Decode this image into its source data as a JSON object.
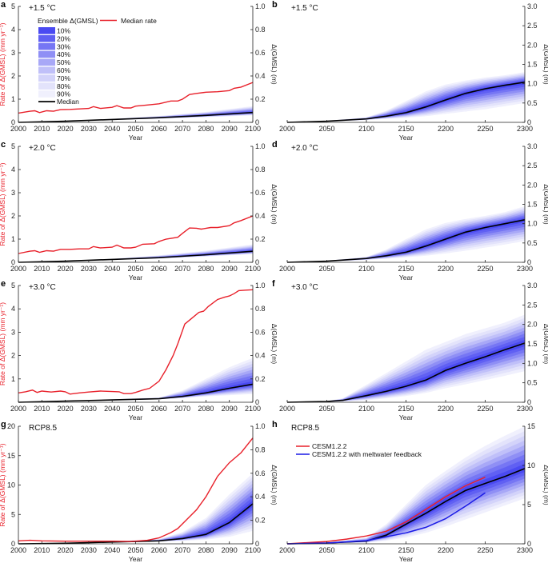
{
  "figure": {
    "ensemble_colors": [
      "#4a4af2",
      "#6060f3",
      "#7676f4",
      "#8f8ff5",
      "#a8a8f7",
      "#c0c0f9",
      "#d3d3fa",
      "#e3e3fb",
      "#f0f0fd"
    ],
    "median_color": "#000000",
    "rate_color": "#e8202a",
    "meltwater_color": "#1a1ae6",
    "legend": {
      "title": "Ensemble Δ(GMSL)",
      "percentiles": [
        "10%",
        "20%",
        "30%",
        "40%",
        "50%",
        "60%",
        "70%",
        "80%",
        "90%"
      ],
      "median_label": "Median",
      "rate_label": "Median rate"
    }
  },
  "chart_data": [
    {
      "id": "a",
      "letter": "a",
      "type": "line",
      "scenario": "+1.5 °C",
      "xlabel": "Year",
      "ylabel_left": "Rate of Δ(GMSL) (mm yr⁻¹)",
      "ylabel_right": "Δ(GMSL) (m)",
      "xlim": [
        2000,
        2100
      ],
      "xticks": [
        2000,
        2010,
        2020,
        2030,
        2040,
        2050,
        2060,
        2070,
        2080,
        2090,
        2100
      ],
      "ylim_left": [
        0,
        5
      ],
      "yticks_left": [
        0,
        1,
        2,
        3,
        4,
        5
      ],
      "ytick_labels_left": [
        "0",
        "1",
        "2",
        "3",
        "4",
        "5"
      ],
      "ylim_right": [
        0,
        1.0
      ],
      "yticks_right": [
        0,
        0.2,
        0.4,
        0.6,
        0.8,
        1.0
      ],
      "ytick_labels_right": [
        "0",
        "0.2",
        "0.4",
        "0.6",
        "0.8",
        "1.0"
      ],
      "has_legend": true,
      "x": [
        2000,
        2005,
        2007,
        2009,
        2012,
        2015,
        2018,
        2022,
        2026,
        2030,
        2032,
        2035,
        2040,
        2042,
        2045,
        2048,
        2050,
        2055,
        2060,
        2065,
        2068,
        2070,
        2073,
        2076,
        2080,
        2085,
        2090,
        2092,
        2095,
        2100
      ],
      "rate_median": [
        0.4,
        0.48,
        0.5,
        0.42,
        0.5,
        0.48,
        0.55,
        0.56,
        0.58,
        0.6,
        0.68,
        0.6,
        0.65,
        0.72,
        0.62,
        0.62,
        0.7,
        0.75,
        0.8,
        0.92,
        0.92,
        1.0,
        1.2,
        1.25,
        1.3,
        1.32,
        1.37,
        1.47,
        1.52,
        1.72
      ],
      "gmsl_x": [
        2000,
        2020,
        2040,
        2060,
        2080,
        2100
      ],
      "gmsl_median": [
        0.0,
        0.01,
        0.025,
        0.04,
        0.06,
        0.085
      ],
      "gmsl_upper_90": [
        0.0,
        0.012,
        0.03,
        0.055,
        0.09,
        0.14
      ],
      "gmsl_lower_90": [
        0.0,
        0.008,
        0.02,
        0.032,
        0.045,
        0.06
      ]
    },
    {
      "id": "b",
      "letter": "b",
      "type": "line",
      "scenario": "+1.5 °C",
      "xlabel": "Year",
      "ylabel_right": "Δ(GMSL) (m)",
      "xlim": [
        2000,
        2300
      ],
      "xticks": [
        2000,
        2050,
        2100,
        2150,
        2200,
        2250,
        2300
      ],
      "ylim_right": [
        0,
        3.0
      ],
      "yticks_right": [
        0,
        0.5,
        1.0,
        1.5,
        2.0,
        2.5,
        3.0
      ],
      "ytick_labels_right": [
        "0",
        "0.5",
        "1.0",
        "1.5",
        "2.0",
        "2.5",
        "3.0"
      ],
      "gmsl_x": [
        2000,
        2050,
        2100,
        2125,
        2150,
        2175,
        2200,
        2225,
        2250,
        2275,
        2300
      ],
      "gmsl_median": [
        0.0,
        0.03,
        0.09,
        0.16,
        0.25,
        0.4,
        0.58,
        0.75,
        0.87,
        0.96,
        1.04
      ],
      "gmsl_upper_90": [
        0.0,
        0.04,
        0.13,
        0.3,
        0.55,
        0.8,
        0.98,
        1.08,
        1.16,
        1.22,
        1.3
      ],
      "gmsl_lower_90": [
        0.0,
        0.02,
        0.06,
        0.09,
        0.12,
        0.16,
        0.22,
        0.28,
        0.34,
        0.42,
        0.5
      ]
    },
    {
      "id": "c",
      "letter": "c",
      "type": "line",
      "scenario": "+2.0 °C",
      "xlabel": "Year",
      "ylabel_left": "Rate of Δ(GMSL) (mm yr⁻¹)",
      "ylabel_right": "Δ(GMSL) (m)",
      "xlim": [
        2000,
        2100
      ],
      "xticks": [
        2000,
        2010,
        2020,
        2030,
        2040,
        2050,
        2060,
        2070,
        2080,
        2090,
        2100
      ],
      "ylim_left": [
        0,
        5
      ],
      "yticks_left": [
        0,
        1,
        2,
        3,
        4,
        5
      ],
      "ytick_labels_left": [
        "0",
        "1",
        "2",
        "3",
        "4",
        "5"
      ],
      "ylim_right": [
        0,
        1.0
      ],
      "yticks_right": [
        0,
        0.2,
        0.4,
        0.6,
        0.8,
        1.0
      ],
      "ytick_labels_right": [
        "0",
        "0.2",
        "0.4",
        "0.6",
        "0.8",
        "1.0"
      ],
      "x": [
        2000,
        2005,
        2007,
        2009,
        2012,
        2015,
        2018,
        2022,
        2026,
        2030,
        2032,
        2035,
        2040,
        2042,
        2045,
        2048,
        2050,
        2053,
        2058,
        2060,
        2063,
        2068,
        2070,
        2073,
        2076,
        2078,
        2082,
        2085,
        2090,
        2092,
        2095,
        2100
      ],
      "rate_median": [
        0.38,
        0.48,
        0.5,
        0.43,
        0.5,
        0.48,
        0.56,
        0.56,
        0.58,
        0.58,
        0.68,
        0.62,
        0.65,
        0.74,
        0.62,
        0.62,
        0.65,
        0.78,
        0.8,
        0.9,
        1.0,
        1.08,
        1.25,
        1.48,
        1.47,
        1.43,
        1.5,
        1.5,
        1.58,
        1.7,
        1.8,
        2.0
      ],
      "gmsl_x": [
        2000,
        2020,
        2040,
        2060,
        2080,
        2100
      ],
      "gmsl_median": [
        0.0,
        0.01,
        0.025,
        0.04,
        0.065,
        0.095
      ],
      "gmsl_upper_90": [
        0.0,
        0.012,
        0.03,
        0.06,
        0.1,
        0.155
      ],
      "gmsl_lower_90": [
        0.0,
        0.008,
        0.02,
        0.033,
        0.05,
        0.07
      ]
    },
    {
      "id": "d",
      "letter": "d",
      "type": "line",
      "scenario": "+2.0 °C",
      "xlabel": "Year",
      "ylabel_right": "Δ(GMSL) (m)",
      "xlim": [
        2000,
        2300
      ],
      "xticks": [
        2000,
        2050,
        2100,
        2150,
        2200,
        2250,
        2300
      ],
      "ylim_right": [
        0,
        3.0
      ],
      "yticks_right": [
        0,
        0.5,
        1.0,
        1.5,
        2.0,
        2.5,
        3.0
      ],
      "ytick_labels_right": [
        "0",
        "0.5",
        "1.0",
        "1.5",
        "2.0",
        "2.5",
        "3.0"
      ],
      "gmsl_x": [
        2000,
        2050,
        2100,
        2125,
        2150,
        2175,
        2200,
        2225,
        2250,
        2275,
        2300
      ],
      "gmsl_median": [
        0.0,
        0.03,
        0.1,
        0.17,
        0.26,
        0.42,
        0.6,
        0.78,
        0.9,
        1.0,
        1.1
      ],
      "gmsl_upper_90": [
        0.0,
        0.04,
        0.14,
        0.33,
        0.6,
        0.85,
        1.02,
        1.12,
        1.2,
        1.3,
        1.45
      ],
      "gmsl_lower_90": [
        0.0,
        0.02,
        0.06,
        0.09,
        0.13,
        0.17,
        0.23,
        0.3,
        0.38,
        0.46,
        0.55
      ]
    },
    {
      "id": "e",
      "letter": "e",
      "type": "line",
      "scenario": "+3.0 °C",
      "xlabel": "Year",
      "ylabel_left": "Rate of Δ(GMSL) (mm yr⁻¹)",
      "ylabel_right": "Δ(GMSL) (m)",
      "xlim": [
        2000,
        2100
      ],
      "xticks": [
        2000,
        2010,
        2020,
        2030,
        2040,
        2050,
        2060,
        2070,
        2080,
        2090,
        2100
      ],
      "ylim_left": [
        0,
        5
      ],
      "yticks_left": [
        1,
        2,
        3,
        4,
        5
      ],
      "ytick_labels_left": [
        "1",
        "2",
        "3",
        "4",
        "5"
      ],
      "ylim_right": [
        0,
        1.0
      ],
      "yticks_right": [
        0,
        0.2,
        0.4,
        0.6,
        0.8,
        1.0
      ],
      "ytick_labels_right": [
        "0",
        "0.2",
        "0.4",
        "0.6",
        "0.8",
        "1.0"
      ],
      "x": [
        2000,
        2003,
        2006,
        2008,
        2010,
        2014,
        2018,
        2020,
        2022,
        2026,
        2030,
        2035,
        2040,
        2043,
        2045,
        2048,
        2050,
        2053,
        2056,
        2060,
        2063,
        2066,
        2068,
        2071,
        2074,
        2077,
        2079,
        2081,
        2085,
        2088,
        2090,
        2092,
        2094,
        2097,
        2100
      ],
      "rate_median": [
        0.4,
        0.45,
        0.52,
        0.42,
        0.48,
        0.44,
        0.48,
        0.45,
        0.35,
        0.4,
        0.44,
        0.48,
        0.46,
        0.45,
        0.37,
        0.37,
        0.42,
        0.52,
        0.6,
        0.9,
        1.4,
        2.0,
        2.5,
        3.35,
        3.6,
        3.85,
        3.9,
        4.1,
        4.4,
        4.5,
        4.55,
        4.65,
        4.78,
        4.8,
        4.82
      ],
      "gmsl_x": [
        2000,
        2020,
        2040,
        2060,
        2070,
        2080,
        2090,
        2100
      ],
      "gmsl_median": [
        0.0,
        0.01,
        0.02,
        0.03,
        0.05,
        0.08,
        0.12,
        0.155
      ],
      "gmsl_upper_90": [
        0.0,
        0.012,
        0.025,
        0.04,
        0.1,
        0.2,
        0.3,
        0.38
      ],
      "gmsl_lower_90": [
        0.0,
        0.008,
        0.015,
        0.025,
        0.035,
        0.05,
        0.06,
        0.07
      ]
    },
    {
      "id": "f",
      "letter": "f",
      "type": "line",
      "scenario": "+3.0 °C",
      "xlabel": "Year",
      "ylabel_right": "Δ(GMSL) (m)",
      "xlim": [
        2000,
        2300
      ],
      "xticks": [
        2000,
        2050,
        2100,
        2150,
        2200,
        2250,
        2300
      ],
      "ylim_right": [
        0,
        3.0
      ],
      "yticks_right": [
        0,
        0.5,
        1.0,
        1.5,
        2.0,
        2.5,
        3.0
      ],
      "ytick_labels_right": [
        "0",
        "0.5",
        "1.0",
        "1.5",
        "2.0",
        "2.5",
        "3.0"
      ],
      "gmsl_x": [
        2000,
        2050,
        2070,
        2100,
        2125,
        2150,
        2175,
        2200,
        2225,
        2250,
        2275,
        2300
      ],
      "gmsl_median": [
        0.0,
        0.02,
        0.05,
        0.17,
        0.28,
        0.41,
        0.57,
        0.82,
        1.0,
        1.17,
        1.35,
        1.52
      ],
      "gmsl_upper_90": [
        0.0,
        0.03,
        0.1,
        0.45,
        0.75,
        1.05,
        1.35,
        1.55,
        1.75,
        1.9,
        2.05,
        2.25
      ],
      "gmsl_lower_90": [
        0.0,
        0.01,
        0.02,
        0.05,
        0.1,
        0.16,
        0.24,
        0.36,
        0.46,
        0.57,
        0.68,
        0.8
      ]
    },
    {
      "id": "g",
      "letter": "g",
      "type": "line",
      "scenario": "RCP8.5",
      "xlabel": "Year",
      "ylabel_left": "Rate of Δ(GMSL) (mm yr⁻¹)",
      "ylabel_right": "Δ(GMSL) (m)",
      "xlim": [
        2000,
        2100
      ],
      "xticks": [
        2000,
        2010,
        2020,
        2030,
        2040,
        2050,
        2060,
        2070,
        2080,
        2090,
        2100
      ],
      "ylim_left": [
        0,
        20
      ],
      "yticks_left": [
        0,
        5,
        10,
        15,
        20
      ],
      "ytick_labels_left": [
        "0",
        "5",
        "10",
        "15",
        "20"
      ],
      "ylim_right": [
        0,
        1.0
      ],
      "yticks_right": [
        0,
        0.2,
        0.4,
        0.6,
        0.8,
        1.0
      ],
      "ytick_labels_right": [
        "0",
        "0.2",
        "0.4",
        "0.6",
        "0.8",
        "1.0"
      ],
      "x": [
        2000,
        2005,
        2010,
        2020,
        2030,
        2040,
        2048,
        2055,
        2060,
        2065,
        2068,
        2072,
        2076,
        2080,
        2085,
        2090,
        2095,
        2100
      ],
      "rate_median": [
        0.5,
        0.6,
        0.5,
        0.45,
        0.45,
        0.45,
        0.4,
        0.6,
        1.0,
        1.9,
        2.6,
        4.2,
        5.8,
        8.0,
        11.5,
        13.8,
        15.5,
        18.0
      ],
      "gmsl_x": [
        2000,
        2020,
        2040,
        2060,
        2070,
        2080,
        2090,
        2100
      ],
      "gmsl_median": [
        0.0,
        0.005,
        0.015,
        0.025,
        0.045,
        0.08,
        0.18,
        0.34
      ],
      "gmsl_upper_90": [
        0.0,
        0.006,
        0.02,
        0.04,
        0.1,
        0.22,
        0.42,
        0.6
      ],
      "gmsl_lower_90": [
        0.0,
        0.004,
        0.01,
        0.02,
        0.025,
        0.035,
        0.06,
        0.11
      ]
    },
    {
      "id": "h",
      "letter": "h",
      "type": "line",
      "scenario": "RCP8.5",
      "xlabel": "Year",
      "ylabel_right": "Δ(GMSL) (m)",
      "xlim": [
        2000,
        2300
      ],
      "xticks": [
        2000,
        2050,
        2100,
        2150,
        2200,
        2250,
        2300
      ],
      "ylim_right": [
        0,
        15
      ],
      "yticks_right": [
        0,
        5,
        10,
        15
      ],
      "ytick_labels_right": [
        "0",
        "5",
        "10",
        "15"
      ],
      "gmsl_x": [
        2000,
        2050,
        2100,
        2125,
        2150,
        2175,
        2200,
        2225,
        2250,
        2275,
        2300
      ],
      "gmsl_median": [
        0.0,
        0.1,
        0.35,
        1.1,
        2.5,
        3.9,
        5.4,
        6.8,
        7.7,
        8.6,
        9.6
      ],
      "gmsl_upper_90": [
        0.0,
        0.15,
        0.8,
        2.5,
        5.0,
        7.5,
        9.3,
        11.0,
        12.5,
        13.8,
        15.0
      ],
      "gmsl_lower_90": [
        0.0,
        0.05,
        0.15,
        0.4,
        0.8,
        1.4,
        2.2,
        3.1,
        4.0,
        4.9,
        5.8
      ],
      "extra_series": [
        {
          "name": "CESM1.2.2",
          "color_key": "rate_color",
          "x": [
            2000,
            2050,
            2075,
            2100,
            2125,
            2150,
            2175,
            2200,
            2225,
            2250
          ],
          "values": [
            0.0,
            0.3,
            0.6,
            1.0,
            1.6,
            2.8,
            4.4,
            6.0,
            7.4,
            8.5
          ]
        },
        {
          "name": "CESM1.2.2 with meltwater feedback",
          "color_key": "meltwater_color",
          "x": [
            2000,
            2050,
            2100,
            2125,
            2150,
            2175,
            2200,
            2225,
            2250
          ],
          "values": [
            0.0,
            0.1,
            0.4,
            0.9,
            1.4,
            2.1,
            3.2,
            4.8,
            6.5
          ]
        }
      ]
    }
  ]
}
